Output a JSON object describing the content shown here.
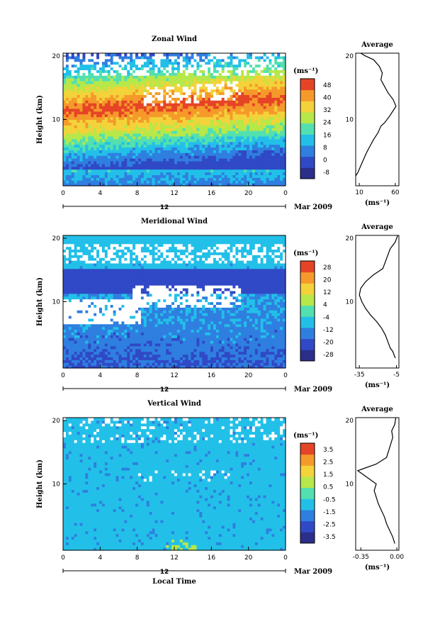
{
  "chart_data": [
    {
      "type": "heatmap",
      "title": "Zonal Wind",
      "xlabel": "",
      "ylabel": "Height (km)",
      "xticks": [
        "0",
        "4",
        "8",
        "12",
        "16",
        "20",
        "0"
      ],
      "yticks": [
        "10",
        "20"
      ],
      "date_day": "12",
      "date_label": "Mar 2009",
      "colorbar": {
        "unit": "(ms⁻¹)",
        "ticks": [
          "-8",
          "0",
          "8",
          "16",
          "24",
          "32",
          "40",
          "48"
        ]
      },
      "profile": {
        "title": "Average",
        "xticks": [
          "10",
          "60"
        ],
        "yticks": [
          "10",
          "20"
        ],
        "xlabel": "(ms⁻¹)",
        "xlim": [
          5,
          65
        ],
        "points": [
          [
            5,
            1.5
          ],
          [
            8,
            2
          ],
          [
            12,
            3
          ],
          [
            16,
            4
          ],
          [
            20,
            5
          ],
          [
            25,
            6
          ],
          [
            30,
            7
          ],
          [
            36,
            8
          ],
          [
            40,
            9
          ],
          [
            45,
            9.5
          ],
          [
            52,
            10.5
          ],
          [
            58,
            11.5
          ],
          [
            61,
            12
          ],
          [
            57,
            13
          ],
          [
            50,
            14
          ],
          [
            45,
            15
          ],
          [
            40,
            16
          ],
          [
            42,
            17
          ],
          [
            38,
            18
          ],
          [
            30,
            19
          ],
          [
            18,
            19.6
          ],
          [
            12,
            20
          ]
        ]
      }
    },
    {
      "type": "heatmap",
      "title": "Meridional Wind",
      "xlabel": "",
      "ylabel": "Height (km)",
      "xticks": [
        "0",
        "4",
        "8",
        "12",
        "16",
        "20",
        "0"
      ],
      "yticks": [
        "10",
        "20"
      ],
      "date_day": "12",
      "date_label": "Mar 2009",
      "colorbar": {
        "unit": "(ms⁻¹)",
        "ticks": [
          "-28",
          "-20",
          "-12",
          "-4",
          "4",
          "12",
          "20",
          "28"
        ]
      },
      "profile": {
        "title": "Average",
        "xticks": [
          "-35",
          "-5"
        ],
        "yticks": [
          "10",
          "20"
        ],
        "xlabel": "(ms⁻¹)",
        "xlim": [
          -38,
          -3
        ],
        "points": [
          [
            -6,
            1.5
          ],
          [
            -8,
            2.5
          ],
          [
            -10,
            3
          ],
          [
            -12,
            4
          ],
          [
            -14,
            5
          ],
          [
            -17,
            6
          ],
          [
            -21,
            7
          ],
          [
            -26,
            8
          ],
          [
            -30,
            9
          ],
          [
            -33,
            10
          ],
          [
            -35,
            11
          ],
          [
            -34,
            12
          ],
          [
            -30,
            13
          ],
          [
            -24,
            14
          ],
          [
            -16,
            15
          ],
          [
            -14,
            16
          ],
          [
            -12,
            17
          ],
          [
            -10,
            18
          ],
          [
            -6,
            19
          ],
          [
            -4,
            20
          ]
        ]
      }
    },
    {
      "type": "heatmap",
      "title": "Vertical Wind",
      "xlabel": "Local Time",
      "ylabel": "Height (km)",
      "xticks": [
        "0",
        "4",
        "8",
        "12",
        "16",
        "20",
        "0"
      ],
      "yticks": [
        "10",
        "20"
      ],
      "date_day": "12",
      "date_label": "Mar 2009",
      "colorbar": {
        "unit": "(ms⁻¹)",
        "ticks": [
          "-3.5",
          "-2.5",
          "-1.5",
          "-0.5",
          "0.5",
          "1.5",
          "2.5",
          "3.5"
        ]
      },
      "profile": {
        "title": "Average",
        "xticks": [
          "-0.35",
          "0.00"
        ],
        "yticks": [
          "10",
          "20"
        ],
        "xlabel": "(ms⁻¹)",
        "xlim": [
          -0.4,
          0.02
        ],
        "points": [
          [
            -0.02,
            1
          ],
          [
            -0.04,
            2
          ],
          [
            -0.07,
            3
          ],
          [
            -0.1,
            4
          ],
          [
            -0.12,
            5
          ],
          [
            -0.15,
            6
          ],
          [
            -0.18,
            7
          ],
          [
            -0.2,
            8
          ],
          [
            -0.22,
            9
          ],
          [
            -0.2,
            10
          ],
          [
            -0.38,
            12
          ],
          [
            -0.2,
            13
          ],
          [
            -0.1,
            14
          ],
          [
            -0.08,
            15
          ],
          [
            -0.06,
            16
          ],
          [
            -0.04,
            17
          ],
          [
            -0.05,
            18
          ],
          [
            -0.02,
            19
          ],
          [
            -0.01,
            20
          ]
        ]
      }
    }
  ],
  "colors": {
    "scale": [
      "#2b2e8a",
      "#3049c6",
      "#2f7fe0",
      "#22c0e8",
      "#52e0b0",
      "#b6e84a",
      "#f4d23a",
      "#f59a2a",
      "#e64426"
    ]
  }
}
